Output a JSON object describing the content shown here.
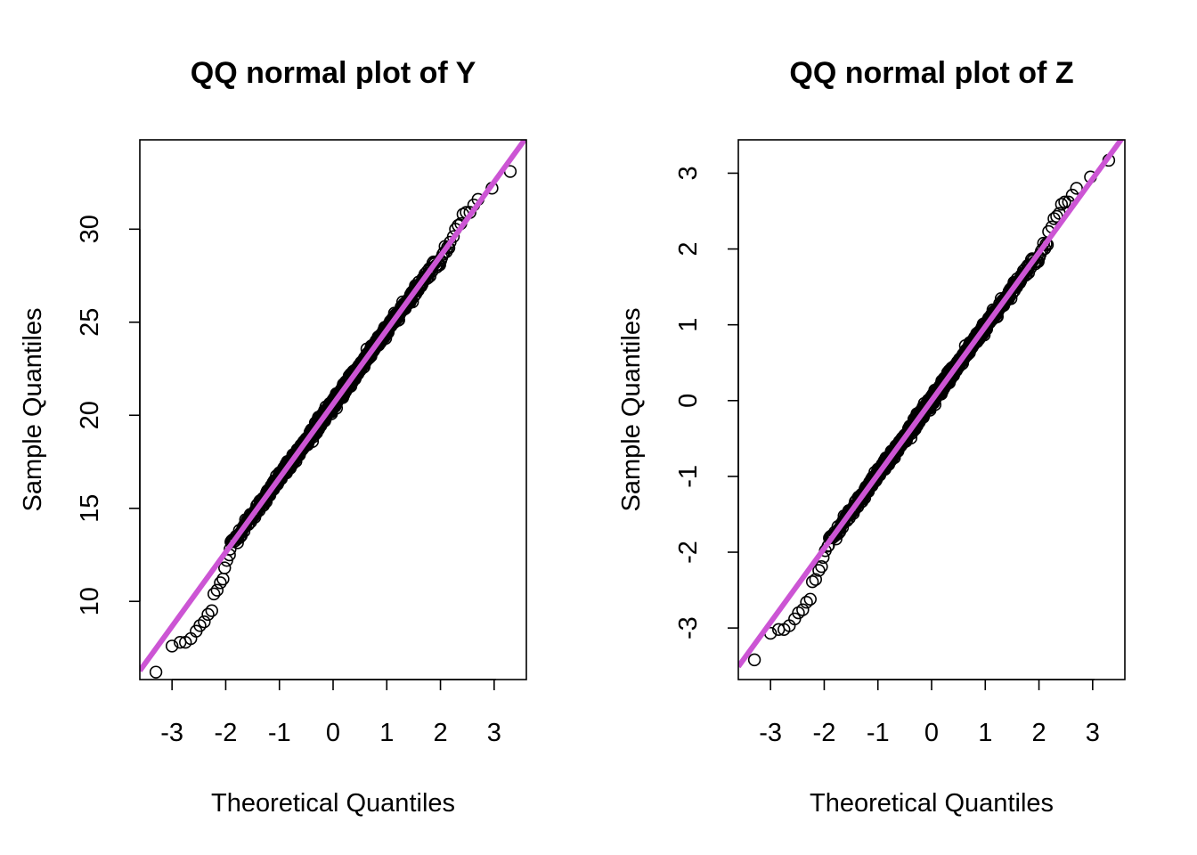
{
  "chart_data": [
    {
      "type": "scatter",
      "title": "QQ normal plot of Y",
      "xlabel": "Theoretical Quantiles",
      "ylabel": "Sample Quantiles",
      "xlim": [
        -3.6,
        3.6
      ],
      "ylim": [
        5.8,
        34.8
      ],
      "xticks": [
        "-3",
        "-2",
        "-1",
        "0",
        "1",
        "2",
        "3"
      ],
      "yticks": [
        "10",
        "15",
        "20",
        "25",
        "30"
      ],
      "grid": false,
      "point_color": "#000000",
      "line_color": "#CC55D4",
      "reference_line": {
        "intercept": 20.6,
        "slope": 3.98
      },
      "tail_points": [
        [
          -3.3,
          6.2
        ],
        [
          -3.0,
          7.6
        ],
        [
          -2.85,
          7.8
        ],
        [
          -2.75,
          7.8
        ],
        [
          -2.65,
          8.0
        ],
        [
          -2.55,
          8.4
        ],
        [
          -2.48,
          8.7
        ],
        [
          -2.4,
          8.9
        ],
        [
          -2.33,
          9.3
        ],
        [
          -2.26,
          9.5
        ],
        [
          -2.22,
          10.4
        ],
        [
          -2.16,
          10.6
        ],
        [
          -2.1,
          11.0
        ],
        [
          -2.05,
          11.2
        ],
        [
          -2.02,
          11.8
        ],
        [
          -1.98,
          12.2
        ],
        [
          -1.93,
          12.5
        ],
        [
          2.18,
          29.3
        ],
        [
          2.24,
          29.6
        ],
        [
          2.28,
          30.0
        ],
        [
          2.33,
          30.2
        ],
        [
          2.38,
          30.3
        ],
        [
          2.42,
          30.8
        ],
        [
          2.48,
          30.9
        ],
        [
          2.55,
          30.9
        ],
        [
          2.62,
          31.3
        ],
        [
          2.7,
          31.6
        ],
        [
          2.96,
          32.2
        ],
        [
          3.3,
          33.1
        ]
      ]
    },
    {
      "type": "scatter",
      "title": "QQ normal plot of Z",
      "xlabel": "Theoretical Quantiles",
      "ylabel": "Sample Quantiles",
      "xlim": [
        -3.6,
        3.6
      ],
      "ylim": [
        -3.68,
        3.44
      ],
      "xticks": [
        "-3",
        "-2",
        "-1",
        "0",
        "1",
        "2",
        "3"
      ],
      "yticks": [
        "-3",
        "-2",
        "-1",
        "0",
        "1",
        "2",
        "3"
      ],
      "grid": false,
      "point_color": "#000000",
      "line_color": "#CC55D4",
      "reference_line": {
        "intercept": 0.0,
        "slope": 0.975
      },
      "tail_points": [
        [
          -3.3,
          -3.42
        ],
        [
          -3.0,
          -3.07
        ],
        [
          -2.85,
          -3.02
        ],
        [
          -2.75,
          -3.02
        ],
        [
          -2.65,
          -2.97
        ],
        [
          -2.55,
          -2.88
        ],
        [
          -2.48,
          -2.8
        ],
        [
          -2.4,
          -2.76
        ],
        [
          -2.33,
          -2.66
        ],
        [
          -2.26,
          -2.62
        ],
        [
          -2.22,
          -2.39
        ],
        [
          -2.16,
          -2.36
        ],
        [
          -2.1,
          -2.24
        ],
        [
          -2.05,
          -2.19
        ],
        [
          -2.02,
          -2.07
        ],
        [
          -1.98,
          -1.98
        ],
        [
          -1.93,
          -1.92
        ],
        [
          2.18,
          2.23
        ],
        [
          2.24,
          2.29
        ],
        [
          2.28,
          2.4
        ],
        [
          2.33,
          2.43
        ],
        [
          2.38,
          2.47
        ],
        [
          2.42,
          2.59
        ],
        [
          2.48,
          2.62
        ],
        [
          2.55,
          2.62
        ],
        [
          2.62,
          2.71
        ],
        [
          2.7,
          2.8
        ],
        [
          2.96,
          2.95
        ],
        [
          3.3,
          3.17
        ]
      ]
    }
  ]
}
